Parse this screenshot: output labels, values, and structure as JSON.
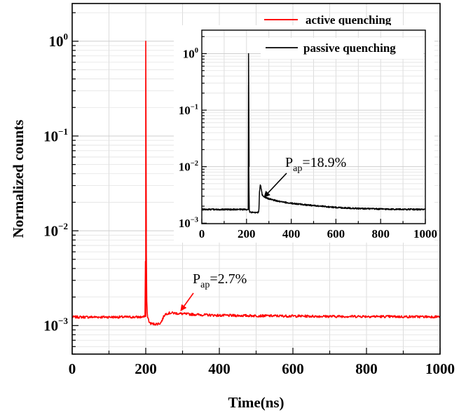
{
  "chart_data": [
    {
      "type": "line",
      "xlabel": "Time(ns)",
      "ylabel": "Normalized counts",
      "xlim": [
        0,
        1000
      ],
      "ylim": [
        0.0005,
        2.5
      ],
      "yscale": "log",
      "grid": true,
      "legend_position": "top-right",
      "x_ticks": [
        0,
        200,
        400,
        600,
        800,
        1000
      ],
      "y_ticks": [
        0.001,
        0.01,
        0.1,
        1
      ],
      "y_tick_labels": [
        {
          "base": "10",
          "exp": "−3"
        },
        {
          "base": "10",
          "exp": "−2"
        },
        {
          "base": "10",
          "exp": "−1"
        },
        {
          "base": "10",
          "exp": "0"
        }
      ],
      "series": [
        {
          "name": "active quenching",
          "color": "#ff0000",
          "x": [
            0,
            195,
            199,
            200,
            201,
            203,
            205,
            210,
            215,
            220,
            230,
            240,
            245,
            250,
            255,
            260,
            270,
            280,
            290,
            300,
            350,
            400,
            500,
            600,
            700,
            800,
            900,
            1000
          ],
          "y": [
            0.00123,
            0.00123,
            0.00125,
            1.0,
            0.01,
            0.0015,
            0.00125,
            0.00107,
            0.00105,
            0.00104,
            0.00104,
            0.00106,
            0.00115,
            0.00128,
            0.00133,
            0.00135,
            0.00136,
            0.00135,
            0.00134,
            0.00133,
            0.0013,
            0.00128,
            0.00127,
            0.00126,
            0.00125,
            0.00125,
            0.00124,
            0.00124
          ]
        }
      ],
      "annotations": [
        {
          "base": "P",
          "sub": "ap",
          "value": "=2.7%"
        }
      ],
      "noise_amplitude": 0.03
    },
    {
      "type": "line",
      "xlim": [
        0,
        1000
      ],
      "ylim": [
        0.00098,
        2.6
      ],
      "yscale": "log",
      "grid": true,
      "legend_position": "top-right",
      "x_ticks": [
        0,
        200,
        400,
        600,
        800,
        1000
      ],
      "y_ticks": [
        0.001,
        0.01,
        0.1,
        1
      ],
      "y_tick_labels": [
        {
          "base": "10",
          "exp": "−3"
        },
        {
          "base": "10",
          "exp": "−2"
        },
        {
          "base": "10",
          "exp": "−1"
        },
        {
          "base": "10",
          "exp": "0"
        }
      ],
      "series": [
        {
          "name": "passive quenching",
          "color": "#000000",
          "x": [
            0,
            200,
            208,
            209,
            210,
            212,
            215,
            220,
            240,
            255,
            258,
            262,
            265,
            270,
            280,
            300,
            350,
            400,
            500,
            600,
            700,
            800,
            900,
            1000
          ],
          "y": [
            0.00175,
            0.00175,
            0.00175,
            1.0,
            0.01,
            0.0017,
            0.00158,
            0.00155,
            0.00153,
            0.00158,
            0.0035,
            0.0049,
            0.0042,
            0.0032,
            0.0029,
            0.0027,
            0.0024,
            0.00225,
            0.00205,
            0.0019,
            0.00182,
            0.00178,
            0.00176,
            0.00175
          ]
        }
      ],
      "annotations": [
        {
          "base": "P",
          "sub": "ap",
          "value": "=18.9%"
        }
      ],
      "noise_amplitude": 0.03
    }
  ]
}
